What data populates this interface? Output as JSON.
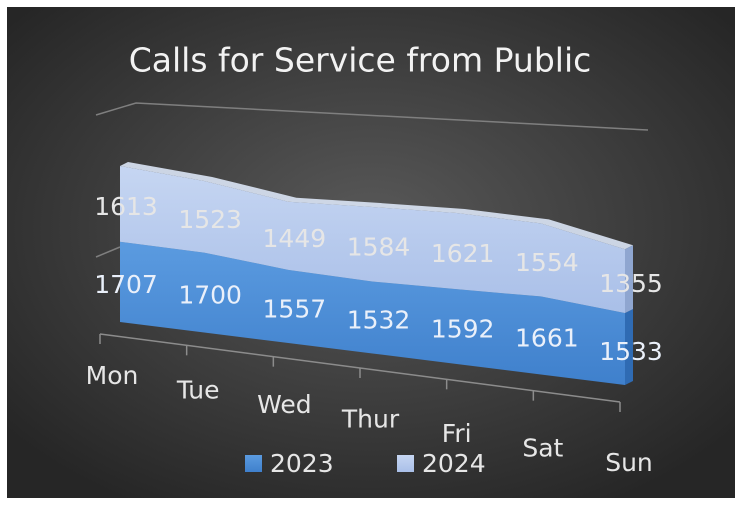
{
  "chart_data": {
    "type": "area3d",
    "title": "Calls for Service from Public",
    "categories": [
      "Mon",
      "Tue",
      "Wed",
      "Thur",
      "Fri",
      "Sat",
      "Sun"
    ],
    "series": [
      {
        "name": "2023",
        "color": "#4a8fd8",
        "values": [
          1707,
          1700,
          1557,
          1532,
          1592,
          1661,
          1533
        ]
      },
      {
        "name": "2024",
        "color": "#b4c8ec",
        "values": [
          1613,
          1523,
          1449,
          1584,
          1621,
          1554,
          1355
        ]
      }
    ],
    "stacked": true,
    "legend": "bottom"
  }
}
